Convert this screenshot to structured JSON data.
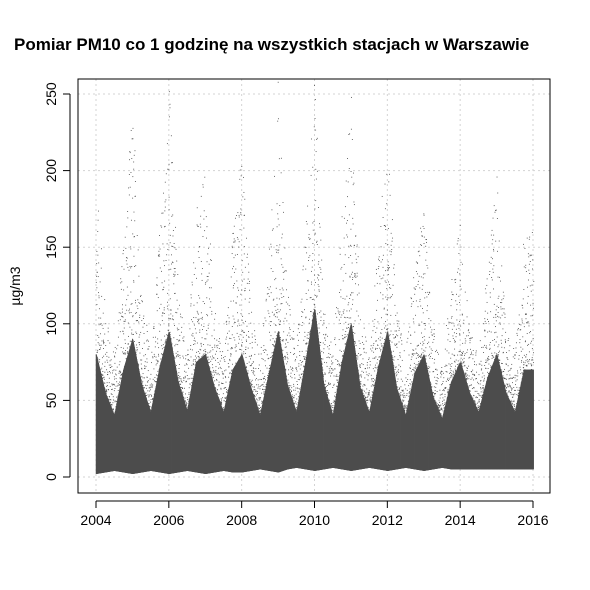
{
  "chart_data": {
    "type": "scatter",
    "title": "Pomiar PM10 co 1 godzinę na wszystkich stacjach w Warszawie",
    "xlabel": "",
    "ylabel": "µg/m3",
    "xlim": [
      2004,
      2016
    ],
    "ylim": [
      0,
      260
    ],
    "x_ticks": [
      2004,
      2006,
      2008,
      2010,
      2012,
      2014,
      2016
    ],
    "x_tick_labels": [
      "2004",
      "2006",
      "2008",
      "2010",
      "2012",
      "2014",
      "2016"
    ],
    "y_ticks": [
      0,
      50,
      100,
      150,
      200,
      250
    ],
    "y_tick_labels": [
      "0",
      "50",
      "100",
      "150",
      "200",
      "250"
    ],
    "grid": true,
    "legend": "none",
    "point_color": "#4d4d4d",
    "grid_color": "#d3d3d3",
    "series": [
      {
        "x": [
          2004.0,
          2004.25,
          2004.5,
          2004.75,
          2005.0,
          2005.25,
          2005.5,
          2005.75,
          2006.0,
          2006.25,
          2006.5,
          2006.75,
          2007.0,
          2007.25,
          2007.5,
          2007.75,
          2008.0,
          2008.25,
          2008.5,
          2008.75,
          2009.0,
          2009.25,
          2009.5,
          2009.75,
          2010.0,
          2010.25,
          2010.5,
          2010.75,
          2011.0,
          2011.25,
          2011.5,
          2011.75,
          2012.0,
          2012.25,
          2012.5,
          2012.75,
          2013.0,
          2013.25,
          2013.5,
          2013.75,
          2014.0,
          2014.25,
          2014.5,
          2014.75,
          2015.0,
          2015.25,
          2015.5,
          2015.75
        ],
        "y_min": [
          2,
          3,
          4,
          3,
          2,
          3,
          4,
          3,
          2,
          3,
          4,
          3,
          2,
          3,
          4,
          3,
          3,
          4,
          5,
          4,
          3,
          5,
          6,
          5,
          4,
          5,
          6,
          5,
          4,
          5,
          6,
          5,
          4,
          5,
          6,
          5,
          4,
          5,
          6,
          5,
          5,
          5,
          5,
          5,
          5,
          5,
          5,
          5
        ],
        "y_dense": [
          80,
          55,
          40,
          70,
          90,
          60,
          42,
          72,
          95,
          62,
          43,
          75,
          80,
          58,
          42,
          70,
          80,
          58,
          40,
          68,
          95,
          60,
          42,
          75,
          110,
          60,
          40,
          75,
          100,
          58,
          42,
          72,
          95,
          58,
          40,
          68,
          80,
          52,
          38,
          62,
          75,
          55,
          42,
          65,
          80,
          55,
          42,
          70
        ],
        "y_max": [
          200,
          110,
          80,
          160,
          250,
          120,
          80,
          170,
          260,
          120,
          85,
          180,
          200,
          110,
          80,
          160,
          220,
          110,
          80,
          150,
          260,
          120,
          85,
          170,
          260,
          110,
          80,
          180,
          250,
          110,
          80,
          160,
          230,
          110,
          80,
          150,
          180,
          100,
          75,
          130,
          170,
          100,
          80,
          140,
          200,
          100,
          80,
          160
        ]
      }
    ]
  }
}
